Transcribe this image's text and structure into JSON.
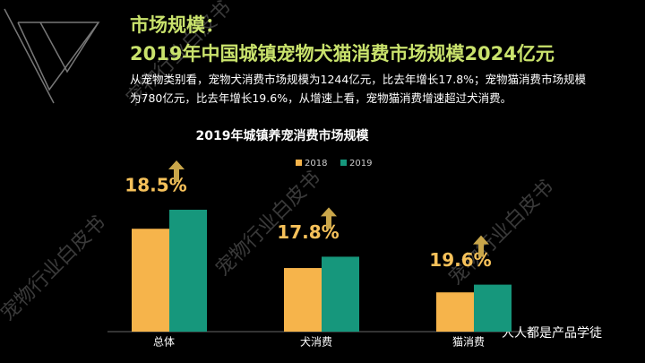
{
  "header": {
    "section": "市场规模：",
    "headline": "2019年中国城镇宠物犬猫消费市场规模2024亿元",
    "body": "从宠物类别看，宠物犬消费市场规模为1244亿元，比去年增长17.8%；宠物猫消费市场规模为780亿元，比去年增长19.6%，从增速上看，宠物猫消费增速超过犬消费。"
  },
  "chart_data": {
    "type": "bar",
    "title": "2019年城镇养宠消费市场规模",
    "categories": [
      "总体",
      "犬消费",
      "猫消费"
    ],
    "series": [
      {
        "name": "2018",
        "color": "#f6b44b",
        "values": [
          1708,
          1056,
          652
        ]
      },
      {
        "name": "2019",
        "color": "#16977c",
        "values": [
          2024,
          1244,
          780
        ]
      }
    ],
    "annotations": [
      "18.5%",
      "17.8%",
      "19.6%"
    ]
  },
  "watermark": "宠物行业白皮书",
  "footer": "人人都是产品学徒"
}
